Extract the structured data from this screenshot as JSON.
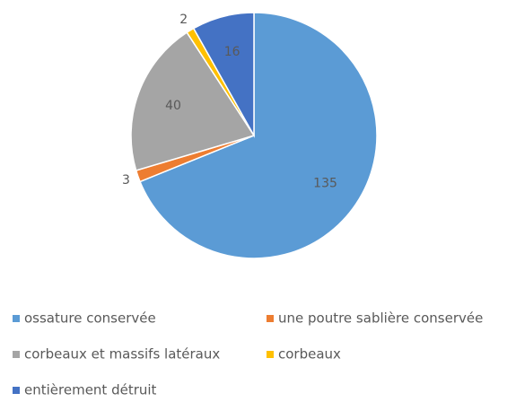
{
  "chart_data": {
    "type": "pie",
    "categories": [
      "ossature conservée",
      "une poutre sablière conservée",
      "corbeaux et massifs latéraux",
      "corbeaux",
      "entièrement détruit"
    ],
    "values": [
      135,
      3,
      40,
      2,
      16
    ],
    "colors": [
      "#5b9bd5",
      "#ed7d31",
      "#a5a5a5",
      "#ffc000",
      "#4472c4"
    ],
    "legend": "bottom"
  }
}
